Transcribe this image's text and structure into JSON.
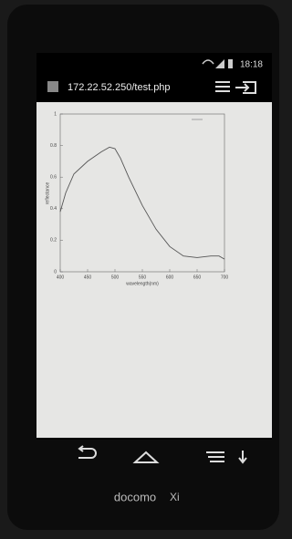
{
  "status_bar": {
    "time": "18:18"
  },
  "browser": {
    "url": "172.22.52.250/test.php"
  },
  "chart_data": {
    "type": "line",
    "x_label": "wavelength(nm)",
    "y_label": "reflectance",
    "x": [
      400,
      410,
      425,
      450,
      475,
      490,
      500,
      510,
      525,
      550,
      575,
      600,
      625,
      650,
      675,
      690,
      700
    ],
    "series": [
      {
        "color": "#555555",
        "values": [
          0.38,
          0.5,
          0.62,
          0.7,
          0.76,
          0.79,
          0.78,
          0.72,
          0.6,
          0.42,
          0.27,
          0.16,
          0.1,
          0.09,
          0.1,
          0.1,
          0.08
        ]
      }
    ],
    "xlim": [
      400,
      700
    ],
    "xticks": [
      400,
      450,
      500,
      550,
      600,
      650,
      700
    ],
    "ylim": [
      0,
      1
    ],
    "yticks": [
      0,
      0.2,
      0.4,
      0.6,
      0.8,
      1
    ]
  },
  "brand": {
    "name": "docomo",
    "service": "Xi"
  }
}
